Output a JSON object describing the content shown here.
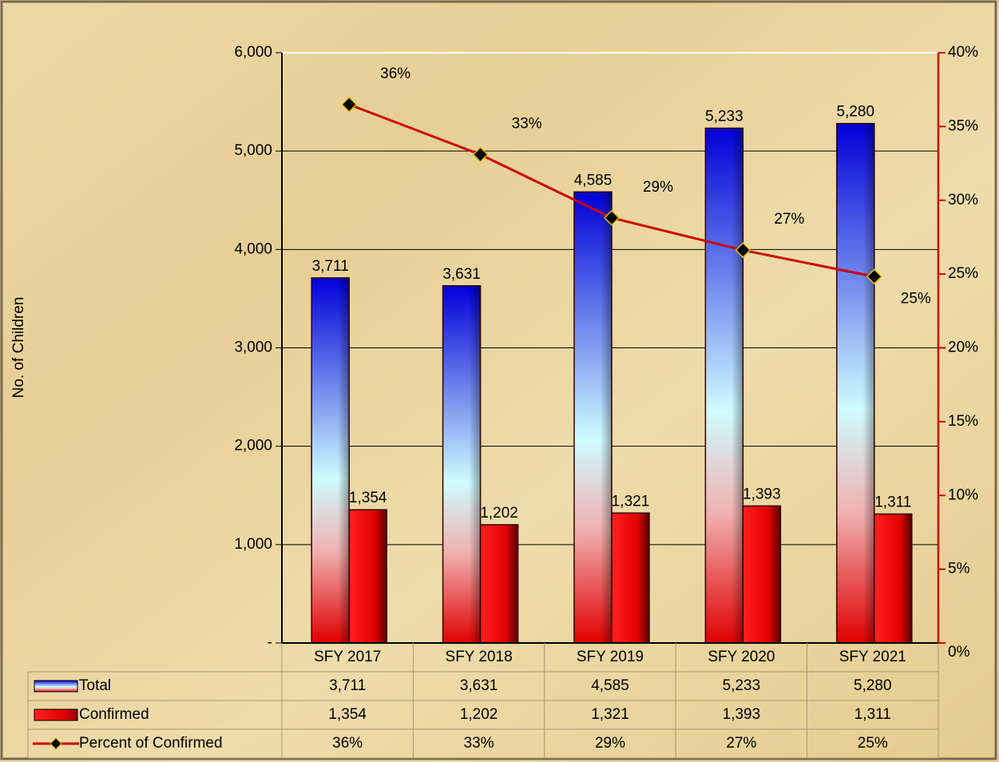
{
  "chart_data": {
    "type": "combo",
    "y_label": "No. of Children",
    "categories": [
      "SFY 2017",
      "SFY 2018",
      "SFY 2019",
      "SFY 2020",
      "SFY 2021"
    ],
    "series": [
      {
        "name": "Total",
        "type": "bar",
        "color": "#1010d0",
        "values": [
          3711,
          3631,
          4585,
          5233,
          5280
        ],
        "value_labels": [
          "3,711",
          "3,631",
          "4,585",
          "5,233",
          "5,280"
        ]
      },
      {
        "name": "Confirmed",
        "type": "bar",
        "color": "#e00000",
        "values": [
          1354,
          1202,
          1321,
          1393,
          1311
        ],
        "value_labels": [
          "1,354",
          "1,202",
          "1,321",
          "1,393",
          "1,311"
        ]
      },
      {
        "name": "Percent of Confirmed",
        "type": "line",
        "axis": "y2",
        "color": "#cc0000",
        "values": [
          36.49,
          33.1,
          28.81,
          26.62,
          24.83
        ],
        "value_labels": [
          "36%",
          "33%",
          "29%",
          "27%",
          "25%"
        ]
      }
    ],
    "ylim": [
      0,
      6000
    ],
    "yticks": [
      {
        "value": 0,
        "label": "-"
      },
      {
        "value": 1000,
        "label": "1,000"
      },
      {
        "value": 2000,
        "label": "2,000"
      },
      {
        "value": 3000,
        "label": "3,000"
      },
      {
        "value": 4000,
        "label": "4,000"
      },
      {
        "value": 5000,
        "label": "5,000"
      },
      {
        "value": 6000,
        "label": "6,000"
      }
    ],
    "y2lim": [
      0,
      40
    ],
    "y2ticks": [
      {
        "value": 0,
        "label": "0%"
      },
      {
        "value": 5,
        "label": "5%"
      },
      {
        "value": 10,
        "label": "10%"
      },
      {
        "value": 15,
        "label": "15%"
      },
      {
        "value": 20,
        "label": "20%"
      },
      {
        "value": 25,
        "label": "25%"
      },
      {
        "value": 30,
        "label": "30%"
      },
      {
        "value": 35,
        "label": "35%"
      },
      {
        "value": 40,
        "label": "40%"
      }
    ],
    "grid": true,
    "data_table": true
  }
}
